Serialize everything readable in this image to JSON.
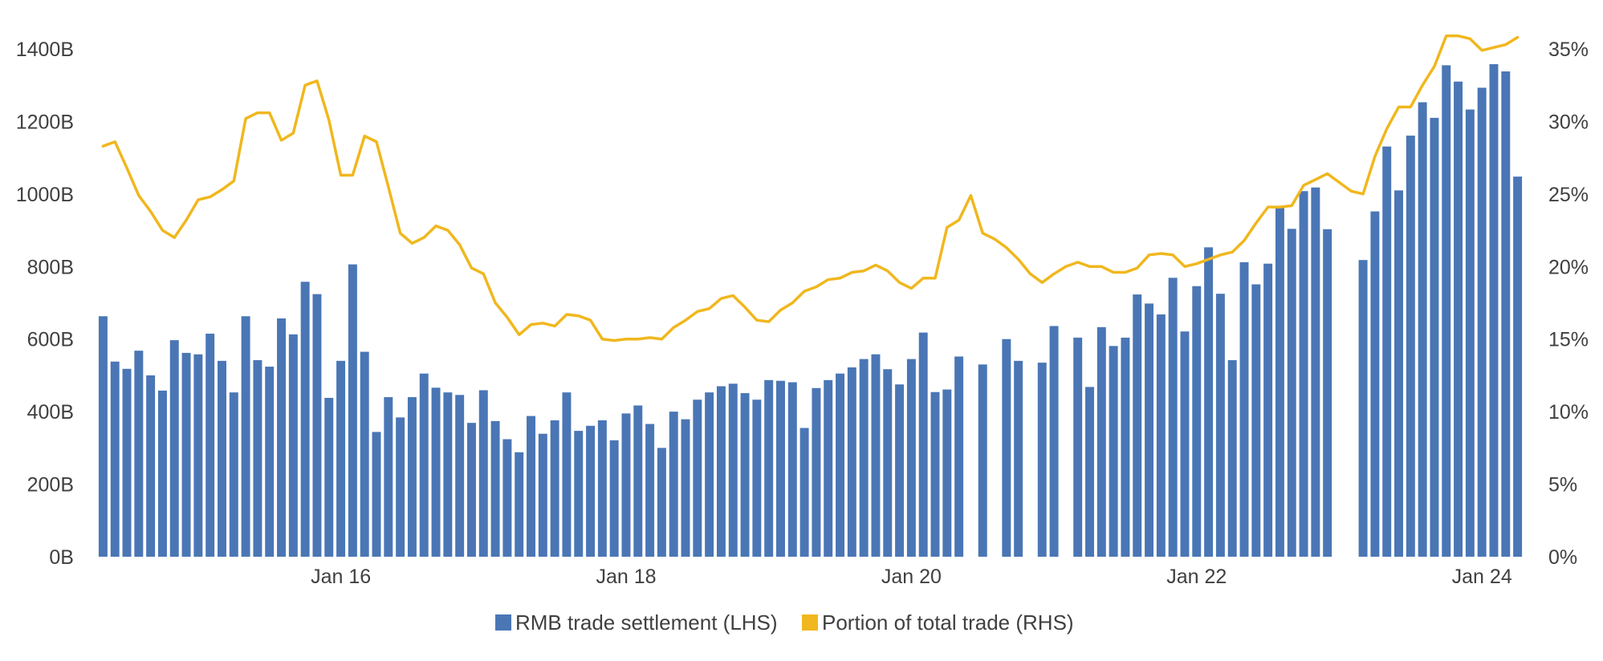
{
  "chart_data": {
    "type": "bar",
    "x_tick_labels": [
      "Jan 16",
      "Jan 18",
      "Jan 20",
      "Jan 22",
      "Jan 24"
    ],
    "y_left": {
      "ticks": [
        "0B",
        "200B",
        "400B",
        "600B",
        "800B",
        "1000B",
        "1200B",
        "1400B"
      ],
      "range": [
        0,
        1400
      ],
      "unit": "B"
    },
    "y_right": {
      "ticks": [
        "0%",
        "5%",
        "10%",
        "15%",
        "20%",
        "25%",
        "30%",
        "35%"
      ],
      "range": [
        0,
        35
      ],
      "unit": "%"
    },
    "grid": false,
    "legend_position": "bottom-center",
    "colors": {
      "bars": "#4a76b5",
      "line": "#f0b71e",
      "text": "#404040"
    },
    "series": [
      {
        "name": "RMB trade settlement (LHS)",
        "type": "bar",
        "axis": "left",
        "values": [
          663,
          538,
          518,
          568,
          500,
          458,
          597,
          562,
          558,
          615,
          540,
          453,
          663,
          542,
          524,
          657,
          613,
          758,
          724,
          438,
          540,
          806,
          565,
          344,
          440,
          384,
          440,
          505,
          466,
          453,
          446,
          369,
          459,
          374,
          324,
          288,
          388,
          339,
          376,
          453,
          347,
          361,
          376,
          321,
          395,
          417,
          366,
          300,
          400,
          379,
          433,
          453,
          470,
          477,
          451,
          433,
          487,
          485,
          481,
          355,
          465,
          487,
          505,
          522,
          545,
          558,
          517,
          475,
          545,
          618,
          454,
          461,
          552,
          null,
          530,
          null,
          600,
          540,
          null,
          535,
          636,
          null,
          604,
          468,
          633,
          581,
          604,
          723,
          698,
          668,
          769,
          621,
          746,
          853,
          725,
          542,
          812,
          751,
          808,
          965,
          904,
          1008,
          1018,
          903,
          null,
          null,
          818,
          952,
          1131,
          1010,
          1161,
          1253,
          1210,
          1355,
          1310,
          1233,
          1293,
          1358,
          1338,
          1048
        ]
      },
      {
        "name": "Portion of total trade (RHS)",
        "type": "line",
        "axis": "right",
        "values": [
          28.3,
          28.6,
          26.8,
          24.9,
          23.8,
          22.5,
          22.0,
          23.2,
          24.6,
          24.8,
          25.3,
          25.9,
          30.2,
          30.6,
          30.6,
          28.7,
          29.2,
          32.5,
          32.8,
          30.1,
          26.3,
          26.3,
          29.0,
          28.6,
          25.5,
          22.3,
          21.6,
          22.0,
          22.8,
          22.5,
          21.5,
          19.9,
          19.5,
          17.5,
          16.5,
          15.3,
          16.0,
          16.1,
          15.9,
          16.7,
          16.6,
          16.3,
          15.0,
          14.9,
          15.0,
          15.0,
          15.1,
          15.0,
          15.8,
          16.3,
          16.9,
          17.1,
          17.8,
          18.0,
          17.2,
          16.3,
          16.2,
          17.0,
          17.5,
          18.3,
          18.6,
          19.1,
          19.2,
          19.6,
          19.7,
          20.1,
          19.7,
          18.9,
          18.5,
          19.2,
          19.2,
          22.7,
          23.2,
          24.9,
          22.3,
          21.9,
          21.3,
          20.5,
          19.5,
          18.9,
          19.5,
          20.0,
          20.3,
          20.0,
          20.0,
          19.6,
          19.6,
          19.9,
          20.8,
          20.9,
          20.8,
          20.0,
          20.2,
          20.5,
          20.8,
          21.0,
          21.8,
          23.0,
          24.1,
          24.1,
          24.2,
          25.6,
          26.0,
          26.4,
          25.8,
          25.2,
          25.0,
          27.6,
          29.5,
          31.0,
          31.0,
          32.5,
          33.8,
          35.9,
          35.9,
          35.7,
          34.9,
          35.1,
          35.3,
          35.8
        ]
      }
    ]
  }
}
